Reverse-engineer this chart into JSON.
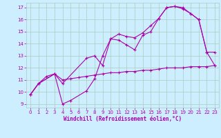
{
  "background_color": "#cceeff",
  "grid_color": "#aaccbb",
  "line_color": "#aa00aa",
  "xlabel": "Windchill (Refroidissement éolien,°C)",
  "xlim": [
    -0.5,
    23.5
  ],
  "ylim": [
    8.7,
    17.4
  ],
  "yticks": [
    9,
    10,
    11,
    12,
    13,
    14,
    15,
    16,
    17
  ],
  "xticks": [
    0,
    1,
    2,
    3,
    4,
    5,
    6,
    7,
    8,
    9,
    10,
    11,
    12,
    13,
    14,
    15,
    16,
    17,
    18,
    19,
    20,
    21,
    22,
    23
  ],
  "series": [
    {
      "x": [
        0,
        1,
        3,
        4,
        7,
        8,
        9,
        10,
        11,
        12,
        13,
        14,
        15,
        16,
        17,
        18,
        19,
        20,
        21,
        22,
        23
      ],
      "y": [
        9.8,
        10.7,
        11.5,
        10.7,
        12.8,
        13.0,
        12.2,
        14.4,
        14.8,
        14.6,
        14.5,
        14.9,
        15.5,
        16.1,
        17.0,
        17.1,
        17.0,
        16.5,
        16.0,
        13.3,
        13.3
      ]
    },
    {
      "x": [
        0,
        1,
        3,
        4,
        5,
        7,
        8,
        9,
        10,
        11,
        12,
        13,
        14,
        15,
        16,
        17,
        18,
        19,
        20,
        21,
        22,
        23
      ],
      "y": [
        9.8,
        10.7,
        11.5,
        9.0,
        9.3,
        10.1,
        11.1,
        13.0,
        14.4,
        14.3,
        13.9,
        13.5,
        14.7,
        15.0,
        16.1,
        17.0,
        17.1,
        16.9,
        16.5,
        16.0,
        13.3,
        12.2
      ]
    },
    {
      "x": [
        0,
        1,
        2,
        3,
        4,
        5,
        6,
        7,
        8,
        9,
        10,
        11,
        12,
        13,
        14,
        15,
        16,
        17,
        18,
        19,
        20,
        21,
        22,
        23
      ],
      "y": [
        9.8,
        10.7,
        11.3,
        11.5,
        11.0,
        11.1,
        11.2,
        11.3,
        11.4,
        11.5,
        11.6,
        11.6,
        11.7,
        11.7,
        11.8,
        11.8,
        11.9,
        12.0,
        12.0,
        12.0,
        12.1,
        12.1,
        12.1,
        12.2
      ]
    }
  ]
}
